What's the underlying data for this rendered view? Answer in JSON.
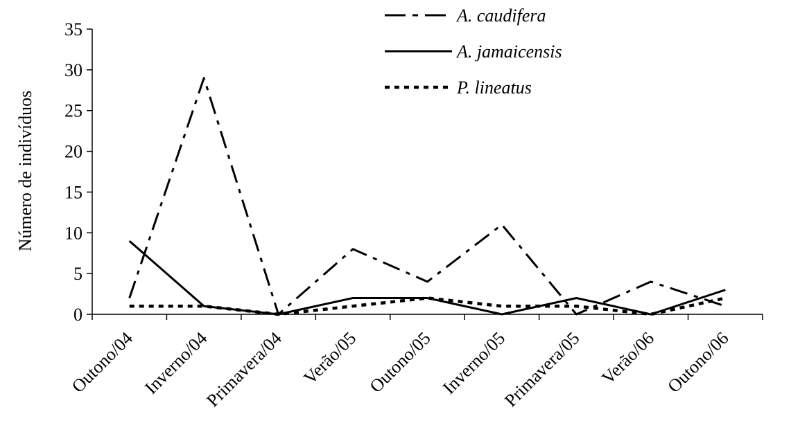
{
  "chart_data": {
    "type": "line",
    "categories": [
      "Outono/04",
      "Inverno/04",
      "Primavera/04",
      "Verão/05",
      "Outono/05",
      "Inverno/05",
      "Primavera/05",
      "Verão/06",
      "Outono/06"
    ],
    "ylabel": "Número de indivíduos",
    "ylim": [
      0,
      35
    ],
    "yticks": [
      0,
      5,
      10,
      15,
      20,
      25,
      30,
      35
    ],
    "grid": false,
    "legend_position": "top-right",
    "series": [
      {
        "name": "A. caudifera",
        "style": "dash-dot",
        "color": "#000000",
        "values": [
          2,
          29,
          0,
          8,
          4,
          11,
          0,
          4,
          1
        ]
      },
      {
        "name": "A. jamaicensis",
        "style": "solid",
        "color": "#000000",
        "values": [
          9,
          1,
          0,
          2,
          2,
          0,
          2,
          0,
          3
        ]
      },
      {
        "name": "P. lineatus",
        "style": "dotted",
        "color": "#000000",
        "values": [
          1,
          1,
          0,
          1,
          2,
          1,
          1,
          0,
          2
        ]
      }
    ]
  }
}
